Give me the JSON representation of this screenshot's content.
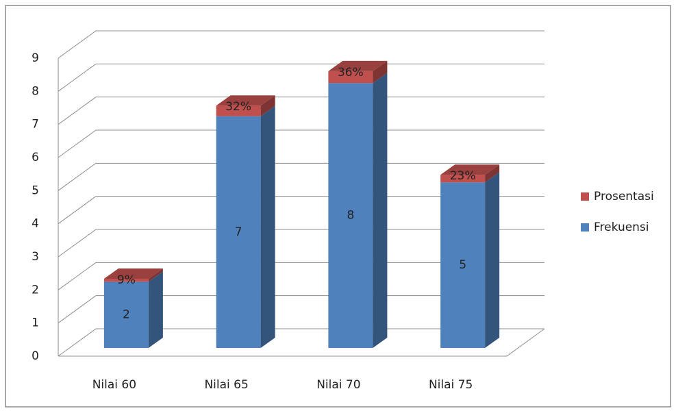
{
  "chart_data": {
    "type": "bar3d_stacked",
    "categories": [
      "Nilai 60",
      "Nilai 65",
      "Nilai 70",
      "Nilai 75"
    ],
    "series": [
      {
        "name": "Frekuensi",
        "color": "#4f81bd",
        "values": [
          2,
          7,
          8,
          5
        ]
      },
      {
        "name": "Prosentasi",
        "color": "#c0504d",
        "values": [
          0.09,
          0.32,
          0.36,
          0.23
        ],
        "value_labels": [
          "9%",
          "32%",
          "36%",
          "23%"
        ]
      }
    ],
    "ylim": [
      0,
      9
    ],
    "yticks": [
      0,
      1,
      2,
      3,
      4,
      5,
      6,
      7,
      8,
      9
    ],
    "grid": true,
    "legend": "right"
  }
}
